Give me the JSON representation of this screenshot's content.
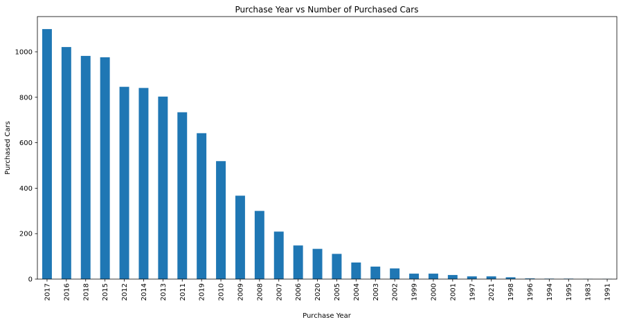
{
  "chart_data": {
    "type": "bar",
    "title": "Purchase Year vs Number of Purchased Cars",
    "xlabel": "Purchase Year",
    "ylabel": "Purchased Cars",
    "categories": [
      "2017",
      "2016",
      "2018",
      "2015",
      "2012",
      "2014",
      "2013",
      "2011",
      "2019",
      "2010",
      "2009",
      "2008",
      "2007",
      "2006",
      "2020",
      "2005",
      "2004",
      "2003",
      "2002",
      "1999",
      "2000",
      "2001",
      "1997",
      "2021",
      "1998",
      "1996",
      "1994",
      "1995",
      "1983",
      "1991"
    ],
    "values": [
      1100,
      1021,
      982,
      976,
      846,
      841,
      803,
      734,
      642,
      519,
      367,
      300,
      209,
      148,
      133,
      111,
      73,
      55,
      47,
      24,
      24,
      18,
      12,
      12,
      8,
      3,
      2,
      2,
      1,
      1
    ],
    "ylim": [
      0,
      1155
    ],
    "yticks": [
      0,
      200,
      400,
      600,
      800,
      1000
    ],
    "grid": false,
    "bar_color": "#1f77b4"
  }
}
